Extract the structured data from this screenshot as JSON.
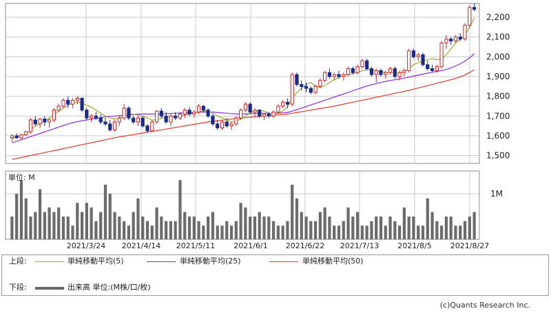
{
  "chart_data": [
    {
      "type": "candlestick",
      "y_ticks": [
        "2,200",
        "2,100",
        "2,000",
        "1,900",
        "1,800",
        "1,700",
        "1,600",
        "1,500"
      ],
      "y_tick_values": [
        2200,
        2100,
        2000,
        1900,
        1800,
        1700,
        1600,
        1500
      ],
      "ylim": [
        1460,
        2270
      ],
      "grid": true,
      "colors": {
        "up": "#d42020",
        "down": "#1a2a8a",
        "ma5": "#9aaa2a",
        "ma25": "#8a2be2",
        "ma50": "#e03a2a"
      },
      "ohlc": [
        [
          1590,
          1608,
          1570,
          1600
        ],
        [
          1600,
          1612,
          1585,
          1590
        ],
        [
          1590,
          1610,
          1580,
          1605
        ],
        [
          1605,
          1625,
          1598,
          1620
        ],
        [
          1620,
          1690,
          1610,
          1680
        ],
        [
          1680,
          1700,
          1650,
          1660
        ],
        [
          1660,
          1690,
          1640,
          1685
        ],
        [
          1685,
          1700,
          1650,
          1670
        ],
        [
          1670,
          1690,
          1640,
          1680
        ],
        [
          1680,
          1740,
          1670,
          1730
        ],
        [
          1730,
          1760,
          1720,
          1750
        ],
        [
          1750,
          1790,
          1740,
          1780
        ],
        [
          1780,
          1800,
          1740,
          1760
        ],
        [
          1760,
          1790,
          1740,
          1780
        ],
        [
          1780,
          1800,
          1760,
          1790
        ],
        [
          1790,
          1795,
          1720,
          1730
        ],
        [
          1730,
          1740,
          1680,
          1690
        ],
        [
          1690,
          1710,
          1670,
          1700
        ],
        [
          1700,
          1720,
          1680,
          1690
        ],
        [
          1690,
          1710,
          1660,
          1670
        ],
        [
          1670,
          1690,
          1650,
          1660
        ],
        [
          1660,
          1680,
          1620,
          1630
        ],
        [
          1630,
          1680,
          1620,
          1670
        ],
        [
          1670,
          1700,
          1650,
          1690
        ],
        [
          1690,
          1760,
          1680,
          1740
        ],
        [
          1740,
          1750,
          1680,
          1690
        ],
        [
          1690,
          1700,
          1660,
          1670
        ],
        [
          1670,
          1700,
          1650,
          1690
        ],
        [
          1690,
          1700,
          1640,
          1650
        ],
        [
          1650,
          1660,
          1615,
          1625
        ],
        [
          1625,
          1680,
          1620,
          1670
        ],
        [
          1670,
          1730,
          1660,
          1725
        ],
        [
          1725,
          1740,
          1690,
          1700
        ],
        [
          1700,
          1720,
          1660,
          1670
        ],
        [
          1670,
          1710,
          1650,
          1700
        ],
        [
          1700,
          1720,
          1680,
          1690
        ],
        [
          1690,
          1720,
          1680,
          1710
        ],
        [
          1710,
          1740,
          1690,
          1730
        ],
        [
          1730,
          1745,
          1700,
          1710
        ],
        [
          1710,
          1730,
          1690,
          1720
        ],
        [
          1720,
          1760,
          1710,
          1750
        ],
        [
          1750,
          1755,
          1720,
          1730
        ],
        [
          1730,
          1740,
          1690,
          1700
        ],
        [
          1700,
          1710,
          1650,
          1660
        ],
        [
          1660,
          1680,
          1630,
          1640
        ],
        [
          1640,
          1680,
          1630,
          1670
        ],
        [
          1670,
          1690,
          1640,
          1650
        ],
        [
          1650,
          1670,
          1630,
          1660
        ],
        [
          1660,
          1700,
          1650,
          1690
        ],
        [
          1690,
          1740,
          1680,
          1730
        ],
        [
          1730,
          1770,
          1720,
          1760
        ],
        [
          1760,
          1770,
          1710,
          1720
        ],
        [
          1720,
          1740,
          1700,
          1730
        ],
        [
          1730,
          1735,
          1690,
          1700
        ],
        [
          1700,
          1715,
          1680,
          1710
        ],
        [
          1710,
          1720,
          1690,
          1700
        ],
        [
          1700,
          1730,
          1690,
          1720
        ],
        [
          1720,
          1760,
          1710,
          1750
        ],
        [
          1750,
          1780,
          1740,
          1770
        ],
        [
          1770,
          1790,
          1740,
          1760
        ],
        [
          1760,
          1920,
          1750,
          1910
        ],
        [
          1910,
          1920,
          1850,
          1860
        ],
        [
          1860,
          1880,
          1830,
          1850
        ],
        [
          1850,
          1870,
          1820,
          1840
        ],
        [
          1840,
          1850,
          1810,
          1820
        ],
        [
          1820,
          1860,
          1810,
          1850
        ],
        [
          1850,
          1890,
          1840,
          1880
        ],
        [
          1880,
          1930,
          1870,
          1920
        ],
        [
          1920,
          1940,
          1890,
          1900
        ],
        [
          1900,
          1920,
          1880,
          1910
        ],
        [
          1910,
          1930,
          1890,
          1900
        ],
        [
          1900,
          1920,
          1880,
          1910
        ],
        [
          1910,
          1950,
          1900,
          1940
        ],
        [
          1940,
          1950,
          1910,
          1920
        ],
        [
          1920,
          1960,
          1910,
          1950
        ],
        [
          1950,
          1990,
          1940,
          1980
        ],
        [
          1980,
          1990,
          1930,
          1940
        ],
        [
          1940,
          1950,
          1900,
          1910
        ],
        [
          1910,
          1940,
          1870,
          1930
        ],
        [
          1930,
          1940,
          1900,
          1910
        ],
        [
          1910,
          1930,
          1890,
          1920
        ],
        [
          1920,
          1950,
          1910,
          1940
        ],
        [
          1940,
          1950,
          1890,
          1900
        ],
        [
          1900,
          1930,
          1880,
          1920
        ],
        [
          1920,
          1940,
          1900,
          1930
        ],
        [
          1930,
          2040,
          1920,
          2030
        ],
        [
          2030,
          2040,
          1990,
          2000
        ],
        [
          2000,
          2020,
          1980,
          2010
        ],
        [
          2010,
          2020,
          1950,
          1960
        ],
        [
          1960,
          1980,
          1930,
          1940
        ],
        [
          1940,
          1960,
          1920,
          1930
        ],
        [
          1930,
          1960,
          1920,
          1950
        ],
        [
          1950,
          2080,
          1940,
          2070
        ],
        [
          2070,
          2110,
          2040,
          2090
        ],
        [
          2090,
          2100,
          2060,
          2080
        ],
        [
          2080,
          2110,
          2070,
          2100
        ],
        [
          2100,
          2120,
          2080,
          2090
        ],
        [
          2090,
          2170,
          2080,
          2160
        ],
        [
          2160,
          2260,
          2150,
          2250
        ],
        [
          2250,
          2270,
          2230,
          2240
        ]
      ],
      "ma5": [
        1585,
        1595,
        1600,
        1610,
        1630,
        1650,
        1660,
        1675,
        1690,
        1705,
        1725,
        1740,
        1755,
        1765,
        1770,
        1765,
        1755,
        1745,
        1730,
        1715,
        1700,
        1690,
        1685,
        1690,
        1700,
        1710,
        1710,
        1705,
        1700,
        1690,
        1680,
        1680,
        1690,
        1695,
        1700,
        1700,
        1700,
        1705,
        1710,
        1715,
        1720,
        1725,
        1725,
        1715,
        1700,
        1690,
        1680,
        1670,
        1675,
        1685,
        1700,
        1715,
        1725,
        1730,
        1725,
        1715,
        1710,
        1715,
        1725,
        1745,
        1790,
        1820,
        1840,
        1860,
        1870,
        1850,
        1845,
        1855,
        1870,
        1885,
        1895,
        1905,
        1910,
        1915,
        1920,
        1930,
        1935,
        1935,
        1930,
        1925,
        1920,
        1920,
        1920,
        1920,
        1925,
        1940,
        1960,
        1970,
        1980,
        1985,
        1990,
        1985,
        1990,
        2010,
        2040,
        2070,
        2090,
        2110,
        2150,
        2195
      ],
      "ma25": [
        1565,
        1572,
        1580,
        1588,
        1596,
        1604,
        1612,
        1620,
        1628,
        1636,
        1644,
        1652,
        1660,
        1666,
        1672,
        1676,
        1680,
        1684,
        1688,
        1692,
        1696,
        1698,
        1700,
        1702,
        1704,
        1706,
        1708,
        1710,
        1710,
        1710,
        1710,
        1710,
        1711,
        1712,
        1713,
        1714,
        1715,
        1716,
        1717,
        1718,
        1719,
        1720,
        1720,
        1720,
        1718,
        1716,
        1714,
        1712,
        1711,
        1710,
        1711,
        1712,
        1713,
        1714,
        1714,
        1714,
        1714,
        1715,
        1716,
        1718,
        1725,
        1732,
        1740,
        1748,
        1756,
        1764,
        1772,
        1780,
        1788,
        1796,
        1804,
        1812,
        1820,
        1828,
        1836,
        1844,
        1852,
        1858,
        1864,
        1870,
        1875,
        1880,
        1884,
        1888,
        1892,
        1897,
        1902,
        1907,
        1912,
        1917,
        1922,
        1926,
        1930,
        1936,
        1944,
        1954,
        1964,
        1978,
        1995,
        2015
      ],
      "ma50": [
        1480,
        1485,
        1490,
        1495,
        1500,
        1505,
        1510,
        1515,
        1520,
        1525,
        1530,
        1535,
        1540,
        1545,
        1550,
        1555,
        1560,
        1565,
        1570,
        1575,
        1580,
        1585,
        1590,
        1594,
        1598,
        1602,
        1606,
        1610,
        1614,
        1618,
        1622,
        1626,
        1630,
        1634,
        1638,
        1642,
        1646,
        1650,
        1654,
        1658,
        1662,
        1666,
        1670,
        1673,
        1676,
        1679,
        1682,
        1685,
        1688,
        1690,
        1692,
        1694,
        1696,
        1698,
        1700,
        1702,
        1704,
        1706,
        1708,
        1710,
        1714,
        1718,
        1722,
        1726,
        1730,
        1734,
        1738,
        1742,
        1746,
        1750,
        1755,
        1760,
        1765,
        1770,
        1775,
        1780,
        1785,
        1790,
        1795,
        1800,
        1805,
        1810,
        1815,
        1820,
        1825,
        1830,
        1836,
        1842,
        1848,
        1854,
        1860,
        1866,
        1872,
        1878,
        1884,
        1890,
        1898,
        1908,
        1920,
        1935
      ]
    },
    {
      "type": "bar",
      "unit_label": "単位: M",
      "y_tick": "1M",
      "y_tick_value": 1.0,
      "ylim": [
        0,
        1.5
      ],
      "volume": [
        0.5,
        1.0,
        1.3,
        0.9,
        0.5,
        0.6,
        1.1,
        0.6,
        0.7,
        0.6,
        0.7,
        0.5,
        0.5,
        0.3,
        0.8,
        0.6,
        0.8,
        0.7,
        0.4,
        0.6,
        1.2,
        1.0,
        0.6,
        0.5,
        0.4,
        0.3,
        0.6,
        0.9,
        0.5,
        0.4,
        0.3,
        0.7,
        0.5,
        0.4,
        0.4,
        0.4,
        1.3,
        0.6,
        0.5,
        0.5,
        0.4,
        0.3,
        0.5,
        0.6,
        0.3,
        0.3,
        0.4,
        0.3,
        0.4,
        0.8,
        0.7,
        0.5,
        0.5,
        0.6,
        0.5,
        0.5,
        0.4,
        0.3,
        0.3,
        0.4,
        1.2,
        0.9,
        0.6,
        0.5,
        0.4,
        0.4,
        0.6,
        0.7,
        0.5,
        0.3,
        0.3,
        0.4,
        0.7,
        0.5,
        0.6,
        0.3,
        0.3,
        0.4,
        0.5,
        0.5,
        0.3,
        0.5,
        0.4,
        0.3,
        0.7,
        0.5,
        0.5,
        0.3,
        0.3,
        0.9,
        0.6,
        0.4,
        0.3,
        0.5,
        0.5,
        0.3,
        0.3,
        0.4,
        0.5,
        0.6
      ]
    }
  ],
  "x_labels": [
    "2021/3/24",
    "2021/4/14",
    "2021/5/11",
    "2021/6/1",
    "2021/6/22",
    "2021/7/13",
    "2021/8/5",
    "2021/8/27"
  ],
  "legend": {
    "upper_label": "上段:",
    "lower_label": "下段:",
    "ma5": "単純移動平均(5)",
    "ma25": "単純移動平均(25)",
    "ma50": "単純移動平均(50)",
    "volume": "出来高 単位:(M株/口/枚)"
  },
  "credit": "(c)Quants Research Inc."
}
